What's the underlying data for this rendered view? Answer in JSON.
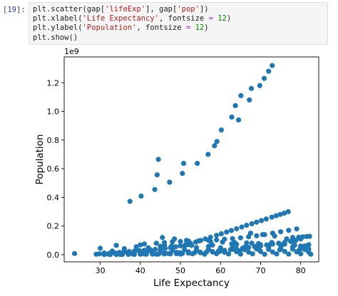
{
  "cell": {
    "prompt": "[19]:",
    "code_lines": [
      [
        {
          "t": "plt.scatter(gap[",
          "c": ""
        },
        {
          "t": "'lifeExp'",
          "c": "str"
        },
        {
          "t": "], gap[",
          "c": ""
        },
        {
          "t": "'pop'",
          "c": "str"
        },
        {
          "t": "])",
          "c": ""
        }
      ],
      [
        {
          "t": "plt.xlabel(",
          "c": ""
        },
        {
          "t": "'Life Expectancy'",
          "c": "str"
        },
        {
          "t": ", fontsize ",
          "c": ""
        },
        {
          "t": "=",
          "c": "op"
        },
        {
          "t": " ",
          "c": ""
        },
        {
          "t": "12",
          "c": "num"
        },
        {
          "t": ")",
          "c": ""
        }
      ],
      [
        {
          "t": "plt.ylabel(",
          "c": ""
        },
        {
          "t": "'Population'",
          "c": "str"
        },
        {
          "t": ", fontsize ",
          "c": ""
        },
        {
          "t": "=",
          "c": "op"
        },
        {
          "t": " ",
          "c": ""
        },
        {
          "t": "12",
          "c": "num"
        },
        {
          "t": ")",
          "c": ""
        }
      ],
      [
        {
          "t": "plt.show()",
          "c": ""
        }
      ]
    ]
  },
  "chart_data": {
    "type": "scatter",
    "xlabel": "Life Expectancy",
    "ylabel": "Population",
    "y_offset_label": "1e9",
    "xlim": [
      21,
      84.5
    ],
    "ylim": [
      -0.05,
      1.38
    ],
    "xticks": [
      30,
      40,
      50,
      60,
      70,
      80
    ],
    "yticks": [
      0.0,
      0.2,
      0.4,
      0.6,
      0.8,
      1.0,
      1.2
    ],
    "ytick_labels": [
      "0.0",
      "0.2",
      "0.4",
      "0.6",
      "0.8",
      "1.0",
      "1.2"
    ],
    "marker_color": "#1f77b4",
    "grid": false,
    "x": [
      23.6,
      37.4,
      40.2,
      43.6,
      44.2,
      44.5,
      47.3,
      50.5,
      50.8,
      54.2,
      56.9,
      58.5,
      59.1,
      60.2,
      62.8,
      63.7,
      64.5,
      65.1,
      67.2,
      67.7,
      69.8,
      70.9,
      72.0,
      72.9,
      29.0,
      32.0,
      35.0,
      38.0,
      41.0,
      44.0,
      47.0,
      50.0,
      53.0,
      56.0,
      59.0,
      62.0,
      65.0,
      68.0,
      71.0,
      74.0,
      77.0,
      80.0,
      82.5,
      31.0,
      34.0,
      37.0,
      40.0,
      43.0,
      46.0,
      49.0,
      52.0,
      55.0,
      58.0,
      61.0,
      64.0,
      67.0,
      70.0,
      73.0,
      76.0,
      79.0,
      82.0,
      33.0,
      36.0,
      39.0,
      42.0,
      45.0,
      48.0,
      51.0,
      54.0,
      57.0,
      60.0,
      63.0,
      66.0,
      69.0,
      72.0,
      75.0,
      78.0,
      81.0,
      30.0,
      36.0,
      42.0,
      48.0,
      54.0,
      60.0,
      66.0,
      72.0,
      78.0,
      39.0,
      45.0,
      51.0,
      57.0,
      63.0,
      69.0,
      75.0,
      81.0,
      34.0,
      40.0,
      46.0,
      52.0,
      58.0,
      64.0,
      70.0,
      76.0,
      82.0,
      41.0,
      44.0,
      46.0,
      48.0,
      50.0,
      52.0,
      55.0,
      57.0,
      59.0,
      61.0,
      63.0,
      65.0,
      67.0,
      69.0,
      71.0,
      73.0,
      75.0,
      77.0,
      79.0,
      76.9,
      75.9,
      74.9,
      73.9,
      72.8,
      71.4,
      70.2,
      69.0,
      67.8,
      66.5,
      65.3,
      64.0,
      62.7,
      61.5,
      60.2,
      59.0,
      57.5,
      56.2,
      55.0,
      53.8,
      52.5,
      51.3,
      50.0,
      48.8,
      47.5,
      46.2,
      45.0,
      43.7,
      42.5,
      41.0,
      39.8,
      38.5,
      37.2,
      36.0,
      34.8,
      33.5,
      32.3,
      31.0,
      29.8,
      78.0,
      79.5,
      80.5,
      81.5,
      82.2,
      80.0,
      78.8,
      77.5,
      76.0,
      74.5,
      73.0,
      71.5,
      70.0,
      68.5,
      67.0,
      65.5,
      64.0,
      62.5,
      61.0,
      59.5,
      58.0,
      56.5,
      55.0,
      53.5,
      52.0,
      50.5,
      49.0,
      47.5,
      46.0,
      44.5,
      43.0,
      41.5,
      40.0,
      38.5,
      37.0,
      35.5,
      34.0,
      32.5,
      31.0,
      45.5,
      48.5,
      51.5,
      54.5,
      57.5,
      60.5,
      63.5,
      66.5,
      69.5,
      72.5,
      75.5,
      78.5,
      81.5,
      44.8,
      49.8,
      54.8,
      59.8,
      64.8,
      69.8,
      74.8,
      79.8,
      47.8,
      52.8,
      57.8,
      62.8,
      67.8,
      72.8,
      77.8,
      81.0,
      82.0,
      80.0,
      76.5,
      73.5,
      70.5,
      67.5
    ],
    "y": [
      0.008,
      0.372,
      0.409,
      0.455,
      0.557,
      0.665,
      0.506,
      0.567,
      0.637,
      0.637,
      0.7,
      0.76,
      0.79,
      0.87,
      0.96,
      1.04,
      0.94,
      1.11,
      1.08,
      1.16,
      1.18,
      1.23,
      1.28,
      1.32,
      0.003,
      0.004,
      0.002,
      0.006,
      0.005,
      0.003,
      0.008,
      0.004,
      0.006,
      0.003,
      0.007,
      0.005,
      0.004,
      0.006,
      0.003,
      0.005,
      0.004,
      0.006,
      0.003,
      0.012,
      0.01,
      0.015,
      0.011,
      0.018,
      0.013,
      0.016,
      0.02,
      0.014,
      0.019,
      0.017,
      0.021,
      0.018,
      0.022,
      0.019,
      0.023,
      0.02,
      0.018,
      0.025,
      0.028,
      0.03,
      0.027,
      0.032,
      0.029,
      0.034,
      0.031,
      0.036,
      0.033,
      0.038,
      0.035,
      0.04,
      0.037,
      0.042,
      0.039,
      0.036,
      0.045,
      0.042,
      0.048,
      0.046,
      0.05,
      0.048,
      0.052,
      0.049,
      0.054,
      0.055,
      0.058,
      0.06,
      0.057,
      0.062,
      0.059,
      0.064,
      0.061,
      0.065,
      0.068,
      0.066,
      0.07,
      0.067,
      0.072,
      0.069,
      0.074,
      0.07,
      0.075,
      0.08,
      0.085,
      0.09,
      0.092,
      0.095,
      0.098,
      0.1,
      0.103,
      0.108,
      0.112,
      0.118,
      0.125,
      0.132,
      0.14,
      0.15,
      0.16,
      0.17,
      0.18,
      0.3,
      0.29,
      0.281,
      0.272,
      0.262,
      0.249,
      0.238,
      0.227,
      0.216,
      0.205,
      0.193,
      0.181,
      0.169,
      0.158,
      0.146,
      0.135,
      0.122,
      0.11,
      0.099,
      0.088,
      0.079,
      0.07,
      0.062,
      0.055,
      0.049,
      0.044,
      0.04,
      0.037,
      0.034,
      0.031,
      0.028,
      0.025,
      0.022,
      0.019,
      0.016,
      0.013,
      0.01,
      0.008,
      0.006,
      0.12,
      0.122,
      0.124,
      0.127,
      0.128,
      0.11,
      0.1,
      0.093,
      0.086,
      0.08,
      0.074,
      0.068,
      0.062,
      0.056,
      0.05,
      0.045,
      0.04,
      0.035,
      0.03,
      0.026,
      0.022,
      0.019,
      0.016,
      0.013,
      0.011,
      0.009,
      0.007,
      0.006,
      0.005,
      0.004,
      0.004,
      0.003,
      0.003,
      0.002,
      0.002,
      0.002,
      0.001,
      0.001,
      0.001,
      0.12,
      0.11,
      0.1,
      0.096,
      0.092,
      0.088,
      0.085,
      0.082,
      0.078,
      0.074,
      0.07,
      0.066,
      0.06,
      0.01,
      0.014,
      0.018,
      0.022,
      0.026,
      0.03,
      0.034,
      0.038,
      0.06,
      0.065,
      0.07,
      0.075,
      0.08,
      0.085,
      0.09,
      0.05,
      0.04,
      0.06,
      0.11,
      0.13,
      0.14,
      0.15
    ]
  }
}
